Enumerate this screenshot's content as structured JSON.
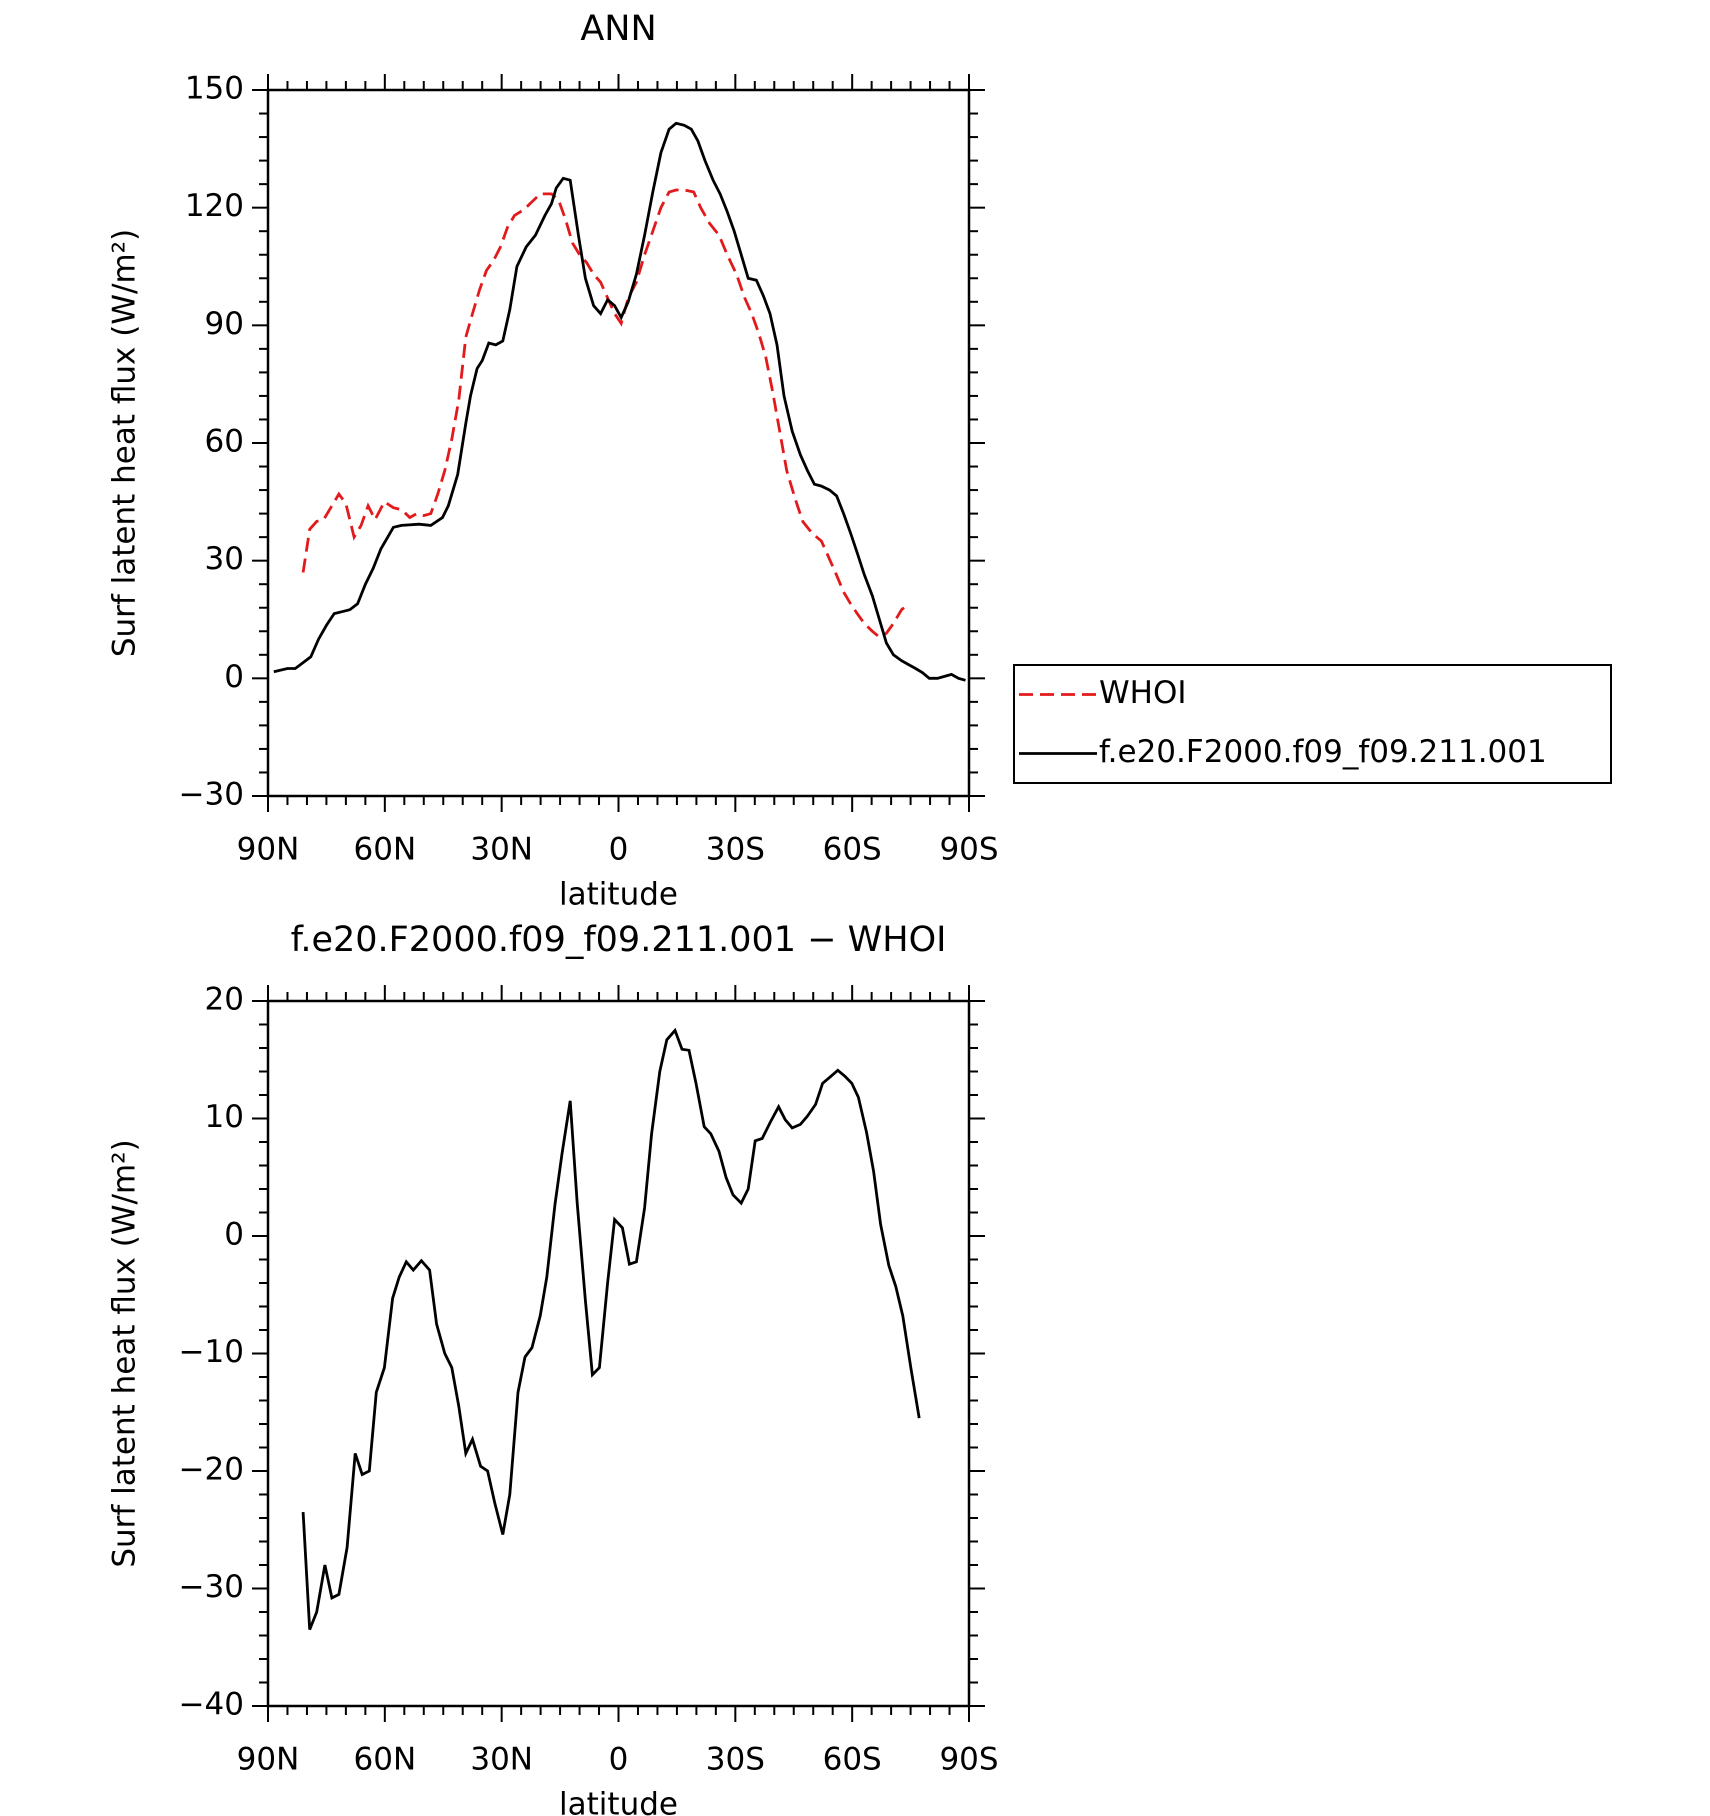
{
  "chart_data": [
    {
      "type": "line",
      "title": "ANN",
      "xlabel": "latitude",
      "ylabel": "Surf latent heat flux (W/m²)",
      "xlim": [
        90,
        -90
      ],
      "xticks": [
        {
          "value": 90,
          "label": "90N"
        },
        {
          "value": 60,
          "label": "60N"
        },
        {
          "value": 30,
          "label": "30N"
        },
        0,
        {
          "value": -30,
          "label": "30S"
        },
        {
          "value": -60,
          "label": "60S"
        },
        {
          "value": -90,
          "label": "90S"
        }
      ],
      "ylim": [
        -30,
        150
      ],
      "yticks": [
        {
          "value": -30,
          "label": "−30"
        },
        0,
        30,
        60,
        90,
        120,
        150
      ],
      "legend": "right",
      "series": [
        {
          "name": "WHOI",
          "color": "#e31a1c",
          "dash": true,
          "x": [
            81,
            79.3,
            77.5,
            75.7,
            73.6,
            71.8,
            70,
            67.9,
            66.1,
            64.3,
            62.5,
            60.1,
            57.8,
            55.7,
            53.6,
            51.8,
            50,
            48.2,
            46.4,
            44.6,
            42.8,
            41,
            39.2,
            37.5,
            35.7,
            33.9,
            32.1,
            30.3,
            28.5,
            26.7,
            24.3,
            22.2,
            20.1,
            17.2,
            15.4,
            13.6,
            11.8,
            10,
            8.2,
            6.4,
            4.6,
            2.8,
            1,
            -0.7,
            -2.5,
            -4.6,
            -6.7,
            -8.8,
            -10.9,
            -13,
            -14.8,
            -16.9,
            -19.3,
            -21.1,
            -23.4,
            -25.8,
            -27.9,
            -30.3,
            -32.4,
            -34.2,
            -36,
            -37.8,
            -39.6,
            -41.4,
            -43.2,
            -45.3,
            -47.3,
            -49.7,
            -52.1,
            -53.9,
            -55.7,
            -57.8,
            -59.6,
            -61.3,
            -63.1,
            -65.2,
            -67,
            -68.8,
            -70.6,
            -72.7,
            -73.3
          ],
          "values": [
            27,
            38,
            40,
            40.5,
            44,
            47,
            44.5,
            36,
            39,
            44,
            40.5,
            45,
            43.5,
            43,
            41,
            42,
            41.5,
            42,
            47,
            53,
            61,
            71,
            87,
            93,
            99,
            104,
            106.5,
            110,
            115,
            118,
            119.5,
            121.5,
            123.5,
            123.5,
            122,
            117,
            111,
            108,
            106,
            103,
            101,
            97,
            93,
            90.5,
            97,
            101,
            108,
            114,
            120,
            124,
            124.5,
            124.5,
            124,
            120,
            116,
            113,
            108,
            103,
            97,
            93,
            88,
            82,
            73,
            63,
            53,
            46,
            40,
            37,
            35,
            31,
            27,
            22,
            19,
            16.5,
            14,
            12,
            10.5,
            11.5,
            14,
            17.5,
            18
          ]
        },
        {
          "name": "f.e20.F2000.f09_f09.211.001",
          "color": "#000000",
          "dash": false,
          "x": [
            88.5,
            85,
            83,
            81,
            79,
            77,
            75,
            73,
            71,
            69,
            67,
            65,
            63,
            61,
            57.8,
            55.7,
            51.2,
            48.2,
            45.2,
            43.7,
            41.3,
            39.2,
            38,
            36.3,
            35,
            33.3,
            31.5,
            29.7,
            27.9,
            26.1,
            23.7,
            21.3,
            18.9,
            17.2,
            16,
            14.2,
            12.4,
            10.3,
            8.5,
            6.4,
            4.6,
            2.8,
            1,
            -0.7,
            -2.5,
            -4.6,
            -6.7,
            -8.8,
            -10.9,
            -13,
            -14.8,
            -16.9,
            -18.7,
            -20.4,
            -22.2,
            -24.3,
            -26.1,
            -27.9,
            -29.7,
            -31.5,
            -33.3,
            -35.4,
            -37.2,
            -38.9,
            -40.7,
            -42.5,
            -44.6,
            -46.7,
            -48.5,
            -50.3,
            -52.1,
            -54.2,
            -56,
            -57.8,
            -59.6,
            -61.3,
            -63.1,
            -65.2,
            -67,
            -68.8,
            -70.6,
            -72.7,
            -74.5,
            -76.3,
            -78,
            -79.8,
            -81.9,
            -83.7,
            -85.5,
            -87.3,
            -89.1
          ],
          "values": [
            1.7,
            2.5,
            2.5,
            4,
            5.5,
            10,
            13.5,
            16.5,
            17,
            17.5,
            19,
            24,
            28,
            33,
            38.5,
            39,
            39.3,
            39,
            41,
            44,
            52,
            65,
            72,
            79,
            81,
            85.5,
            85,
            86,
            94,
            105,
            110,
            113,
            118,
            121,
            125,
            127.5,
            127,
            113,
            102,
            95,
            93,
            96.5,
            95,
            92,
            96,
            103,
            113,
            124,
            134,
            140,
            141.5,
            141,
            140,
            137,
            132,
            127,
            123.5,
            119,
            114,
            108,
            102,
            101.5,
            97.5,
            93,
            85,
            72,
            63,
            57,
            53,
            49.5,
            49,
            48,
            46.5,
            42,
            37,
            32,
            26.5,
            21,
            15,
            9,
            6,
            4.5,
            3.5,
            2.5,
            1.5,
            0,
            0,
            0.5,
            1,
            0,
            -0.5
          ]
        }
      ]
    },
    {
      "type": "line",
      "title": "f.e20.F2000.f09_f09.211.001 − WHOI",
      "xlabel": "latitude",
      "ylabel": "Surf latent heat flux (W/m²)",
      "xlim": [
        90,
        -90
      ],
      "xticks": [
        {
          "value": 90,
          "label": "90N"
        },
        {
          "value": 60,
          "label": "60N"
        },
        {
          "value": 30,
          "label": "30N"
        },
        0,
        {
          "value": -30,
          "label": "30S"
        },
        {
          "value": -60,
          "label": "60S"
        },
        {
          "value": -90,
          "label": "90S"
        }
      ],
      "ylim": [
        -40,
        20
      ],
      "yticks": [
        {
          "value": -40,
          "label": "−40"
        },
        {
          "value": -30,
          "label": "−30"
        },
        {
          "value": -20,
          "label": "−20"
        },
        {
          "value": -10,
          "label": "−10"
        },
        0,
        10,
        20
      ],
      "color": "#000000",
      "x": [
        81,
        79.3,
        77.5,
        75.4,
        73.6,
        71.8,
        69.7,
        67.6,
        65.8,
        64,
        62.2,
        60.1,
        58,
        56.3,
        54.5,
        52.7,
        50.6,
        48.5,
        46.7,
        44.6,
        42.8,
        41,
        39.2,
        37.5,
        35.4,
        33.6,
        31.8,
        29.7,
        27.9,
        25.8,
        24,
        22.2,
        20.1,
        18.4,
        16.3,
        14.5,
        12.4,
        10.6,
        8.5,
        6.7,
        4.9,
        2.8,
        1,
        -1,
        -2.8,
        -4.6,
        -6.7,
        -8.5,
        -10.6,
        -12.4,
        -14.5,
        -16.3,
        -18.1,
        -19.9,
        -22,
        -23.7,
        -25.8,
        -27.6,
        -29.4,
        -31.5,
        -33.3,
        -35.1,
        -36.9,
        -39,
        -41.1,
        -42.8,
        -44.6,
        -46.7,
        -48.5,
        -50.6,
        -52.4,
        -54.2,
        -56.3,
        -58.1,
        -59.9,
        -61.6,
        -63.7,
        -65.5,
        -67.3,
        -69.4,
        -71.2,
        -73,
        -75.1,
        -77.2
      ],
      "values": [
        -23.5,
        -33.5,
        -32,
        -28,
        -30.8,
        -30.5,
        -26.5,
        -18.5,
        -20.3,
        -20,
        -13.3,
        -11.2,
        -5.3,
        -3.5,
        -2.2,
        -2.9,
        -2.1,
        -2.9,
        -7.5,
        -10,
        -11.2,
        -14.5,
        -18.5,
        -17.3,
        -19.6,
        -20,
        -22.7,
        -25.4,
        -22,
        -13.3,
        -10.3,
        -9.5,
        -6.8,
        -3.5,
        2.7,
        7,
        11.5,
        2.8,
        -5.5,
        -11.8,
        -11.2,
        -4,
        1.4,
        0.7,
        -2.4,
        -2.2,
        2.4,
        8.7,
        14,
        16.7,
        17.5,
        15.9,
        15.8,
        13,
        9.3,
        8.7,
        7.2,
        5,
        3.5,
        2.8,
        4,
        8.1,
        8.3,
        9.7,
        11,
        9.9,
        9.2,
        9.5,
        10.2,
        11.2,
        13,
        13.5,
        14.1,
        13.6,
        13,
        11.8,
        8.8,
        5.5,
        1,
        -2.5,
        -4.3,
        -6.8,
        -11.3,
        -15.5
      ]
    }
  ]
}
